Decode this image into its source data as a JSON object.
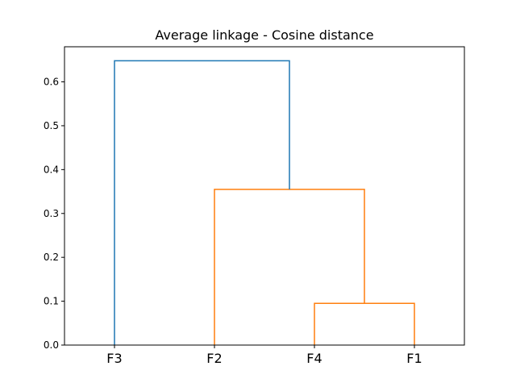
{
  "chart_data": {
    "type": "dendrogram",
    "title": "Average linkage - Cosine distance",
    "xlabel": "",
    "ylabel": "",
    "leaves": [
      "F3",
      "F2",
      "F4",
      "F1"
    ],
    "ylim": [
      0,
      0.68
    ],
    "yticks": [
      0.0,
      0.1,
      0.2,
      0.3,
      0.4,
      0.5,
      0.6
    ],
    "ytick_labels": [
      "0.0",
      "0.1",
      "0.2",
      "0.3",
      "0.4",
      "0.5",
      "0.6"
    ],
    "grid": false,
    "legend": "none",
    "merges": [
      {
        "left": "F4",
        "right": "F1",
        "height": 0.095,
        "color": "#ff7f0e"
      },
      {
        "left": "F2",
        "right": "F4+F1",
        "height": 0.355,
        "color": "#ff7f0e"
      },
      {
        "left": "F3",
        "right": "F2+F4+F1",
        "height": 0.648,
        "color": "#1f77b4"
      }
    ]
  }
}
